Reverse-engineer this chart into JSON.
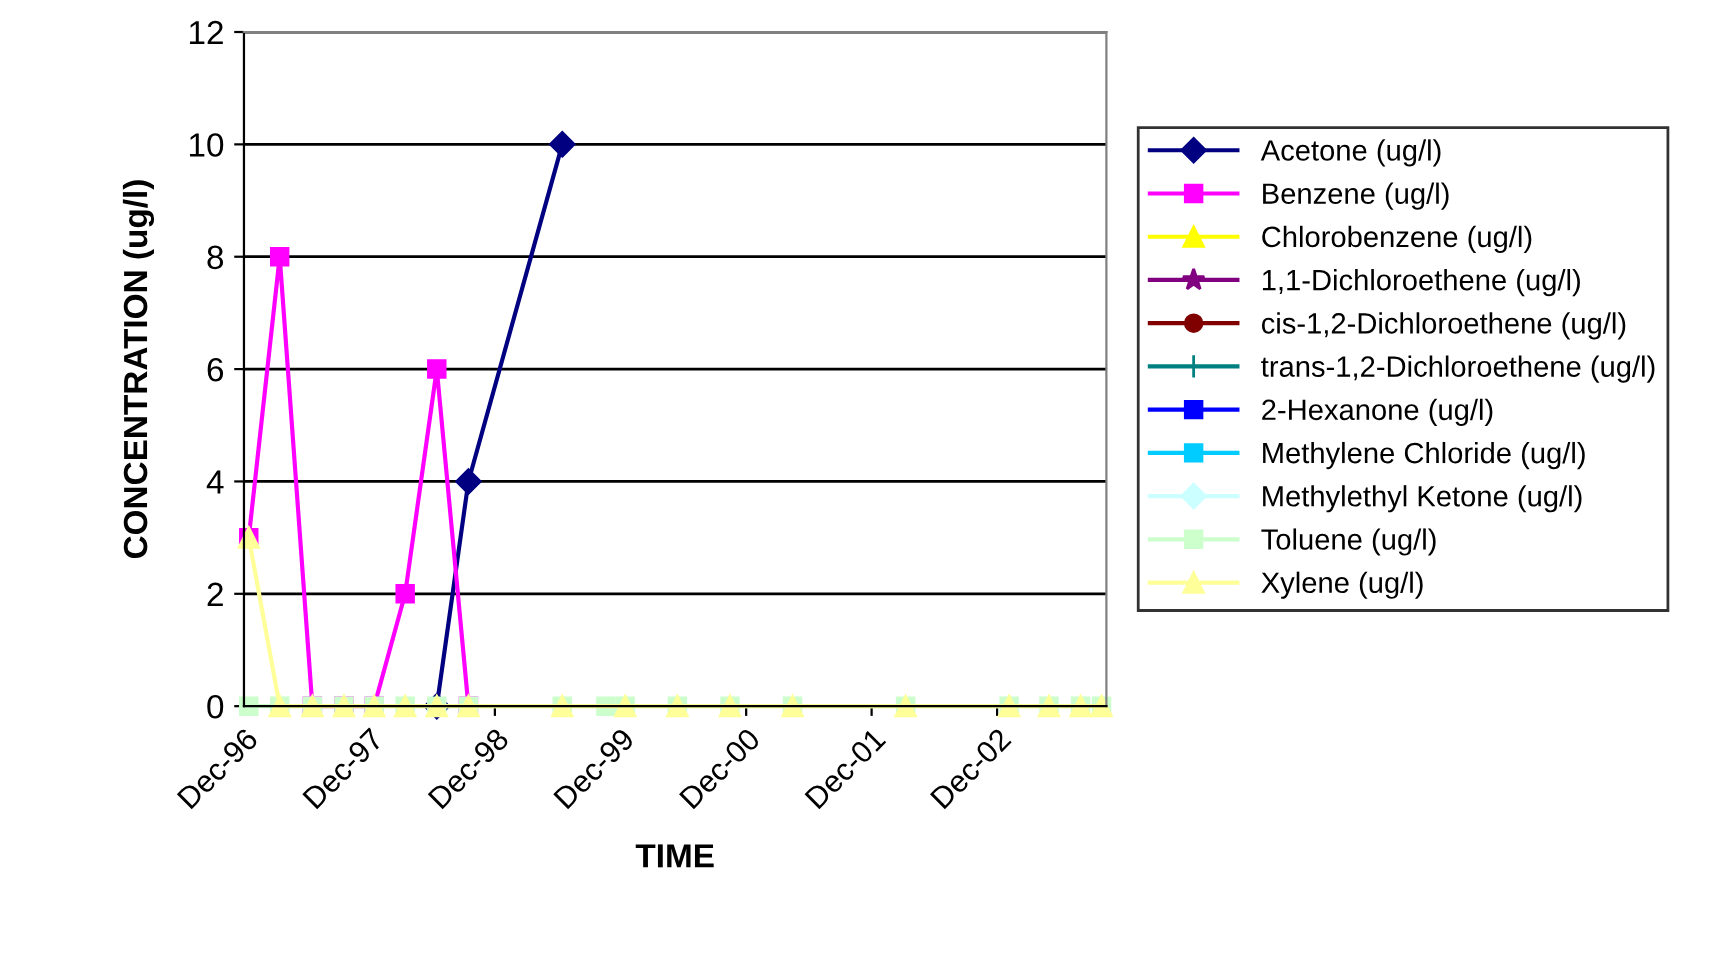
{
  "chart_data": {
    "type": "line",
    "xlabel": "TIME",
    "ylabel": "CONCENTRATION (ug/l)",
    "x": [
      "1996-12-15",
      "1997-03-15",
      "1997-06-18",
      "1997-09-18",
      "1997-12-15",
      "1998-03-15",
      "1998-06-15",
      "1998-09-15",
      "1999-06-15",
      "1999-10-20",
      "1999-12-15",
      "2000-05-15",
      "2000-10-15",
      "2001-04-15",
      "2002-03-10",
      "2003-01-05",
      "2003-05-01",
      "2003-08-01",
      "2003-10-01"
    ],
    "xlim": [
      "1996-12-01",
      "2003-10-15"
    ],
    "xticks": [
      {
        "value": "1996-12-01",
        "label": "Dec-96"
      },
      {
        "value": "1997-12-01",
        "label": "Dec-97"
      },
      {
        "value": "1998-12-01",
        "label": "Dec-98"
      },
      {
        "value": "1999-12-01",
        "label": "Dec-99"
      },
      {
        "value": "2000-12-01",
        "label": "Dec-00"
      },
      {
        "value": "2001-12-01",
        "label": "Dec-01"
      },
      {
        "value": "2002-12-01",
        "label": "Dec-02"
      }
    ],
    "ylim": [
      0,
      12
    ],
    "yticks": [
      0,
      2,
      4,
      6,
      8,
      10,
      12
    ],
    "grid": "y",
    "legend": "right",
    "series": [
      {
        "name": "Acetone (ug/l)",
        "color": "#000080",
        "marker": "diamond",
        "values": [
          null,
          null,
          null,
          null,
          null,
          null,
          0,
          4,
          10,
          null,
          null,
          null,
          null,
          null,
          null,
          null,
          null,
          null,
          null
        ]
      },
      {
        "name": "Benzene (ug/l)",
        "color": "#ff00ff",
        "marker": "square",
        "values": [
          3,
          8,
          0,
          0,
          0,
          2,
          6,
          0,
          null,
          null,
          null,
          null,
          null,
          null,
          null,
          null,
          null,
          null,
          null
        ]
      },
      {
        "name": "Chlorobenzene (ug/l)",
        "color": "#ffff00",
        "marker": "triangle",
        "values": [
          null,
          null,
          null,
          null,
          null,
          null,
          null,
          null,
          null,
          null,
          null,
          null,
          null,
          null,
          null,
          null,
          null,
          null,
          null
        ]
      },
      {
        "name": "1,1-Dichloroethene (ug/l)",
        "color": "#800080",
        "marker": "star",
        "values": [
          null,
          null,
          null,
          null,
          null,
          null,
          null,
          null,
          null,
          null,
          null,
          null,
          null,
          null,
          null,
          null,
          null,
          null,
          null
        ]
      },
      {
        "name": "cis-1,2-Dichloroethene (ug/l)",
        "color": "#800000",
        "marker": "circle",
        "values": [
          null,
          null,
          null,
          null,
          null,
          null,
          null,
          null,
          null,
          null,
          null,
          null,
          null,
          null,
          null,
          null,
          null,
          null,
          null
        ]
      },
      {
        "name": "trans-1,2-Dichloroethene (ug/l)",
        "color": "#008080",
        "marker": "cross",
        "values": [
          null,
          null,
          null,
          null,
          null,
          null,
          null,
          null,
          null,
          null,
          null,
          null,
          null,
          null,
          null,
          null,
          null,
          null,
          null
        ]
      },
      {
        "name": "2-Hexanone (ug/l)",
        "color": "#0000ff",
        "marker": "square",
        "values": [
          null,
          null,
          null,
          null,
          null,
          null,
          null,
          null,
          null,
          null,
          null,
          null,
          null,
          null,
          null,
          null,
          null,
          null,
          null
        ]
      },
      {
        "name": "Methylene Chloride (ug/l)",
        "color": "#00ccff",
        "marker": "square",
        "values": [
          null,
          null,
          null,
          null,
          null,
          null,
          null,
          null,
          null,
          null,
          null,
          null,
          null,
          null,
          null,
          null,
          null,
          null,
          null
        ]
      },
      {
        "name": "Methylethyl Ketone (ug/l)",
        "color": "#ccffff",
        "marker": "diamond",
        "values": [
          null,
          null,
          null,
          null,
          null,
          null,
          null,
          null,
          null,
          null,
          null,
          null,
          null,
          null,
          null,
          null,
          null,
          null,
          null
        ]
      },
      {
        "name": "Toluene (ug/l)",
        "color": "#ccffcc",
        "marker": "square",
        "values": [
          0,
          0,
          0,
          0,
          0,
          0,
          0,
          0,
          0,
          0,
          0,
          0,
          0,
          0,
          0,
          0,
          0,
          0,
          0
        ]
      },
      {
        "name": "Xylene (ug/l)",
        "color": "#ffff99",
        "marker": "triangle",
        "values": [
          3,
          0,
          0,
          0,
          0,
          0,
          0,
          0,
          0,
          null,
          0,
          0,
          0,
          0,
          0,
          0,
          0,
          0,
          0
        ]
      }
    ]
  }
}
